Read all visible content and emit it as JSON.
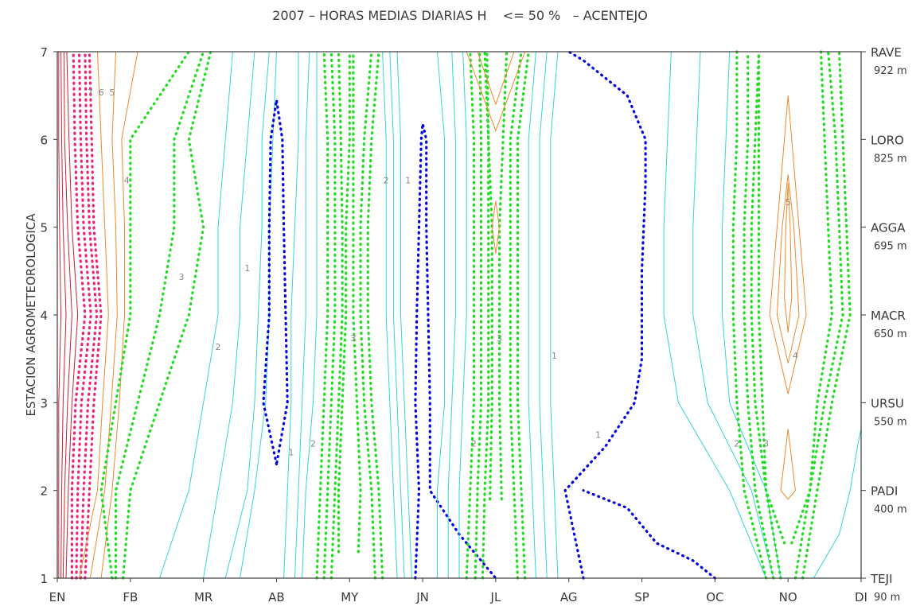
{
  "chart_data": {
    "type": "contour",
    "title": "2007 – HORAS MEDIAS DIARIAS H    <= 50 %   – ACENTEJO",
    "ylabel": "ESTACION AGROMETEOROLOGICA",
    "xlabel": "",
    "x_ticks": [
      "EN",
      "FB",
      "MR",
      "AB",
      "MY",
      "JN",
      "JL",
      "AG",
      "SP",
      "OC",
      "NO",
      "DI"
    ],
    "y_ticks": [
      1,
      2,
      3,
      4,
      5,
      6,
      7
    ],
    "xlim": [
      1,
      12
    ],
    "ylim": [
      1,
      7
    ],
    "stations": [
      {
        "code": "TEJI",
        "altitude": "90 m",
        "y": 1
      },
      {
        "code": "PADI",
        "altitude": "400 m",
        "y": 2
      },
      {
        "code": "URSU",
        "altitude": "550 m",
        "y": 3
      },
      {
        "code": "MACR",
        "altitude": "650 m",
        "y": 4
      },
      {
        "code": "AGGA",
        "altitude": "695 m",
        "y": 5
      },
      {
        "code": "LORO",
        "altitude": "825 m",
        "y": 6
      },
      {
        "code": "RAVE",
        "altitude": "922 m",
        "y": 7
      }
    ],
    "colors": {
      "level_1": "#0000dd",
      "thin_low": "#33d6d6",
      "level_int": "#22dd22",
      "thin_mid": "#f08a2a",
      "level_high": "#ee2277",
      "thin_high": "#cc2233"
    },
    "contour_labels": [
      {
        "text": "1",
        "x": 3.6,
        "y": 4.5
      },
      {
        "text": "1",
        "x": 4.2,
        "y": 2.4
      },
      {
        "text": "1",
        "x": 5.8,
        "y": 5.5
      },
      {
        "text": "1",
        "x": 8.4,
        "y": 2.6
      },
      {
        "text": "1",
        "x": 7.8,
        "y": 3.5
      },
      {
        "text": "2",
        "x": 3.2,
        "y": 3.6
      },
      {
        "text": "2",
        "x": 4.5,
        "y": 2.5
      },
      {
        "text": "2",
        "x": 5.5,
        "y": 5.5
      },
      {
        "text": "2",
        "x": 6.7,
        "y": 2.5
      },
      {
        "text": "2",
        "x": 10.3,
        "y": 2.5
      },
      {
        "text": "3",
        "x": 2.7,
        "y": 4.4
      },
      {
        "text": "3",
        "x": 5.05,
        "y": 3.7
      },
      {
        "text": "3",
        "x": 7.05,
        "y": 3.7
      },
      {
        "text": "3",
        "x": 10.7,
        "y": 2.5
      },
      {
        "text": "4",
        "x": 1.95,
        "y": 5.5
      },
      {
        "text": "4",
        "x": 11.1,
        "y": 3.5
      },
      {
        "text": "5",
        "x": 1.75,
        "y": 6.5
      },
      {
        "text": "5",
        "x": 11.0,
        "y": 5.25
      },
      {
        "text": "6",
        "x": 1.6,
        "y": 6.5
      },
      {
        "text": "7",
        "x": 1.45,
        "y": 6.5
      }
    ]
  }
}
